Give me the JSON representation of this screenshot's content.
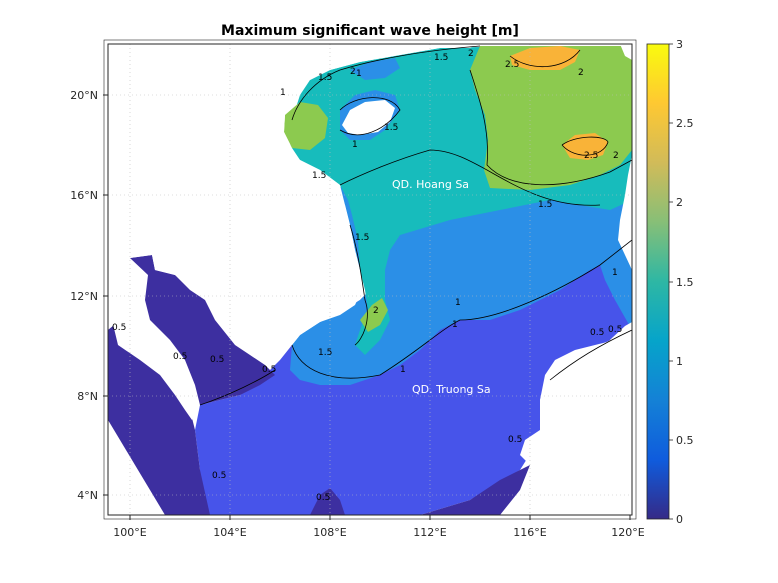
{
  "title": "Maximum significant wave height [m]",
  "x_ticks": [
    "100°E",
    "104°E",
    "108°E",
    "112°E",
    "116°E",
    "120°E"
  ],
  "y_ticks": [
    "4°N",
    "8°N",
    "12°N",
    "16°N",
    "20°N"
  ],
  "colorbar": {
    "ticks": [
      "0",
      "0.5",
      "1",
      "1.5",
      "2",
      "2.5",
      "3"
    ],
    "min": 0,
    "max": 3,
    "colormap": "parula",
    "colors": [
      "#352a87",
      "#0f5cdd",
      "#1481d6",
      "#06a4ca",
      "#2eb7a4",
      "#87bf77",
      "#d1bb59",
      "#fec832",
      "#f9fb0e"
    ]
  },
  "labels": {
    "paracel": "QD. Hoang Sa",
    "spratly": "QD. Truong Sa"
  },
  "contour_labels": [
    "1.5",
    "1.5",
    "2",
    "2",
    "2.5",
    "1",
    "1",
    "2",
    "1.5",
    "1",
    "2.5",
    "2",
    "1.5",
    "1.5",
    "1.5",
    "1",
    "1",
    "2",
    "1.5",
    "1",
    "0.5",
    "0.5",
    "0.5",
    "0.5",
    "1",
    "0.5",
    "0.5",
    "0.5",
    "0.5",
    "0.5"
  ],
  "map": {
    "lon_range": [
      99.2,
      120.2
    ],
    "lat_range": [
      3.0,
      22.0
    ],
    "level_colors": {
      "0-0.5": "#3d2fa0",
      "0.5-1": "#4754ea",
      "1-1.5": "#2b8fe7",
      "1.5-2": "#17bcbc",
      "2-2.5": "#8cca4f",
      "2.5-3": "#f9b338"
    }
  }
}
